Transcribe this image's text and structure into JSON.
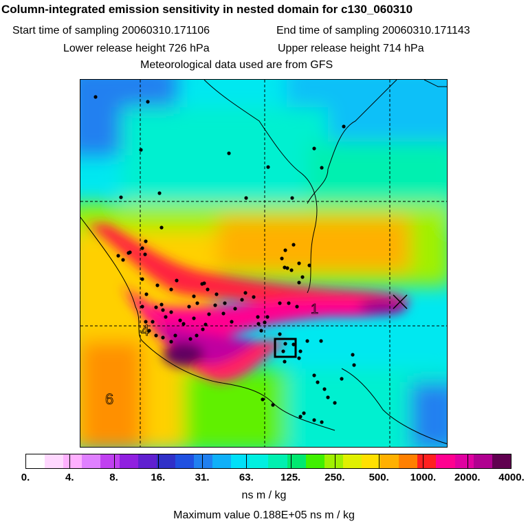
{
  "header": {
    "title": "Column-integrated emission sensitivity in nested domain for c130_060310",
    "start_time": "Start time of sampling 20060310.171106",
    "end_time": "End time of sampling 20060310.171143",
    "lower_release": "Lower release height  726 hPa",
    "upper_release": "Upper release height  714 hPa",
    "met_data": "Meteorological data used are from GFS"
  },
  "map": {
    "contour_labels": [
      "1",
      "4",
      "6"
    ]
  },
  "colorbar": {
    "colors": [
      "#ffffff",
      "#ffd8ff",
      "#ffb0ff",
      "#e080ff",
      "#c040f0",
      "#9020e0",
      "#6020d0",
      "#3030c8",
      "#2050e0",
      "#2080f0",
      "#10b0f8",
      "#00e0f8",
      "#00f0e0",
      "#00f0b0",
      "#00e870",
      "#40f000",
      "#a0f000",
      "#e0f000",
      "#ffe000",
      "#ffb000",
      "#ff8000",
      "#ff2020",
      "#ff0090",
      "#e000a0",
      "#b00090",
      "#600050"
    ],
    "ticks": [
      "0.",
      "4.",
      "8.",
      "16.",
      "31.",
      "63.",
      "125.",
      "250.",
      "500.",
      "1000.",
      "2000.",
      "4000."
    ],
    "units": "ns m / kg"
  },
  "footer": {
    "max_value": "Maximum value  0.188E+05 ns m / kg"
  }
}
